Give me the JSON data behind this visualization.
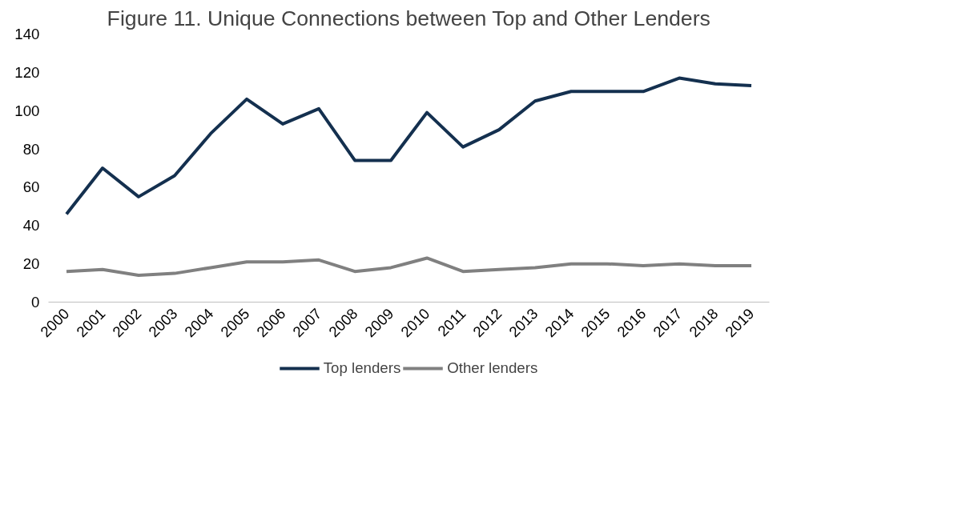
{
  "chart_data": {
    "type": "line",
    "title": "Figure 11. Unique Connections between Top and Other Lenders",
    "categories": [
      "2000",
      "2001",
      "2002",
      "2003",
      "2004",
      "2005",
      "2006",
      "2007",
      "2008",
      "2009",
      "2010",
      "2011",
      "2012",
      "2013",
      "2014",
      "2015",
      "2016",
      "2017",
      "2018",
      "2019"
    ],
    "series": [
      {
        "name": "Top lenders",
        "color": "#14304f",
        "values": [
          46,
          70,
          55,
          66,
          88,
          106,
          93,
          101,
          74,
          74,
          99,
          81,
          90,
          105,
          110,
          110,
          110,
          117,
          114,
          113
        ]
      },
      {
        "name": "Other lenders",
        "color": "#808080",
        "values": [
          16,
          17,
          14,
          15,
          18,
          21,
          21,
          22,
          16,
          18,
          23,
          16,
          17,
          18,
          20,
          20,
          19,
          20,
          19,
          19
        ]
      }
    ],
    "ylim": [
      0,
      140
    ],
    "yticks": [
      0,
      20,
      40,
      60,
      80,
      100,
      120,
      140
    ],
    "grid": false,
    "legend": "bottom",
    "marker": "none",
    "line_style": "solid"
  }
}
